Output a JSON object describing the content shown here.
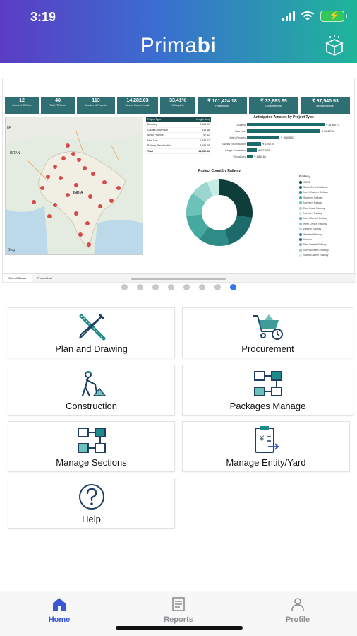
{
  "status_bar": {
    "time": "3:19"
  },
  "header": {
    "title_prefix": "Prima",
    "title_suffix": "bi"
  },
  "banner": {
    "kpis": [
      {
        "value": "12",
        "label": "Count of RFCode"
      },
      {
        "value": "48",
        "label": "Total PR Count"
      },
      {
        "value": "113",
        "label": "Number of Projects"
      },
      {
        "value": "14,282.63",
        "label": "Sum of Project Length"
      },
      {
        "value": "33.41%",
        "label": "%Complete"
      },
      {
        "value": "₹ 101,424.18",
        "label": "Project(Amt)"
      },
      {
        "value": "₹ 33,883.65",
        "label": "Complete(Amt)"
      },
      {
        "value": "₹ 67,540.53",
        "label": "Remaining(Amt)"
      }
    ],
    "map_labels": {
      "country": "INDIA",
      "region": "ISTAN",
      "region2": "IIA",
      "credit": "Bing"
    },
    "table": {
      "headers": [
        "Project Type",
        "Length (km)"
      ],
      "rows": [
        [
          "Doubling",
          "7,569.00"
        ],
        [
          "Gauge Conversion",
          "919.48"
        ],
        [
          "Metro Projects",
          "97.82"
        ],
        [
          "New Line",
          "1,338.72"
        ],
        [
          "Railway Electrification",
          "4,093.75"
        ],
        [
          "Total",
          "14,282.63"
        ]
      ]
    },
    "anticipated": {
      "title": "Anticipated Amount by Project Type",
      "rows": [
        {
          "label": "Doubling",
          "value": "₹ 38,880.74"
        },
        {
          "label": "New Line",
          "value": "₹ 36,437.11"
        },
        {
          "label": "Metro Projects",
          "value": "₹ 15,608.97"
        },
        {
          "label": "Railway Electrification",
          "value": "₹ 6,200.00"
        },
        {
          "label": "Gauge Conversion",
          "value": "₹ 4,216.08"
        },
        {
          "label": "Workshops",
          "value": "₹ 1,810.66"
        }
      ]
    },
    "donut_title": "Project Count by Railway",
    "legend": {
      "title": "Railway",
      "items": [
        "CORE",
        "South Central Railway",
        "North Eastern Railway",
        "Southern Railway",
        "Northern Railway",
        "East Coast Railway",
        "Northern Railway",
        "North Central Railway",
        "West Central Railway",
        "Eastern Railway",
        "Western Railway",
        "Konkan",
        "East Central Railway",
        "North Western Railway",
        "South Eastern Railway"
      ]
    },
    "tabs": [
      "Overall Status",
      "Project List"
    ]
  },
  "carousel": {
    "count": 8,
    "active": 7
  },
  "tiles": [
    {
      "label": "Plan and Drawing",
      "icon": "plan-drawing-icon"
    },
    {
      "label": "Procurement",
      "icon": "procurement-cart-icon"
    },
    {
      "label": "Construction",
      "icon": "construction-worker-icon"
    },
    {
      "label": "Packages Manage",
      "icon": "packages-flowchart-icon"
    },
    {
      "label": "Manage Sections",
      "icon": "sections-flowchart-icon"
    },
    {
      "label": "Manage Entity/Yard",
      "icon": "entity-clipboard-icon"
    },
    {
      "label": "Help",
      "icon": "help-icon"
    }
  ],
  "bottom_nav": [
    {
      "label": "Home",
      "icon": "home-icon",
      "active": true
    },
    {
      "label": "Reports",
      "icon": "reports-icon",
      "active": false
    },
    {
      "label": "Profile",
      "icon": "profile-icon",
      "active": false
    }
  ],
  "colors": {
    "accent": "#3b57d6",
    "teal": "#1e6b6b",
    "tile_icon": "#1f8a8a",
    "kpi": "#2f6f73"
  }
}
